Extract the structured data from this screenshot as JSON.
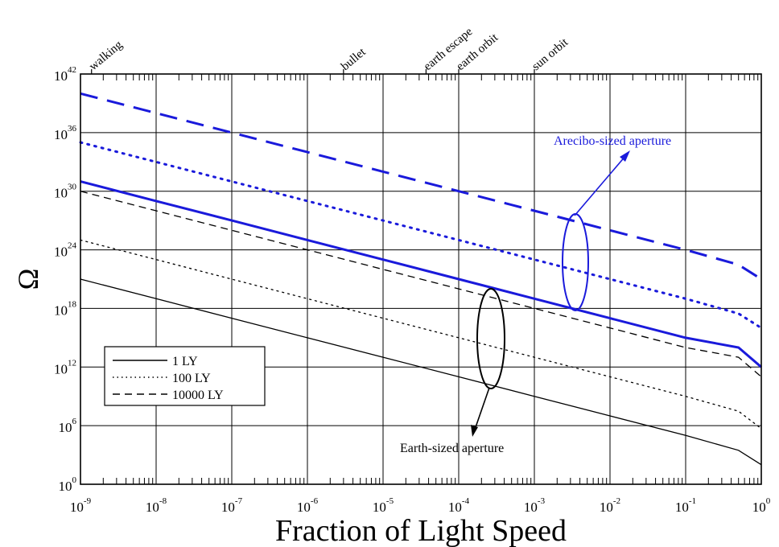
{
  "chart_data": {
    "type": "line",
    "title": "",
    "xlabel": "Fraction of Light Speed",
    "ylabel": "Ω",
    "x_scale": "log",
    "y_scale": "log",
    "xlim": [
      1e-09,
      1
    ],
    "ylim": [
      1,
      1e+42
    ],
    "grid": true,
    "x_ticks": [
      {
        "base": "10",
        "exp": "-9",
        "value": 1e-09
      },
      {
        "base": "10",
        "exp": "-8",
        "value": 1e-08
      },
      {
        "base": "10",
        "exp": "-7",
        "value": 1e-07
      },
      {
        "base": "10",
        "exp": "-6",
        "value": 1e-06
      },
      {
        "base": "10",
        "exp": "-5",
        "value": 1e-05
      },
      {
        "base": "10",
        "exp": "-4",
        "value": 0.0001
      },
      {
        "base": "10",
        "exp": "-3",
        "value": 0.001
      },
      {
        "base": "10",
        "exp": "-2",
        "value": 0.01
      },
      {
        "base": "10",
        "exp": "-1",
        "value": 0.1
      },
      {
        "base": "10",
        "exp": "0",
        "value": 1
      }
    ],
    "y_ticks": [
      {
        "base": "10",
        "exp": "0",
        "value": 1
      },
      {
        "base": "10",
        "exp": "6",
        "value": 1000000.0
      },
      {
        "base": "10",
        "exp": "12",
        "value": 1000000000000.0
      },
      {
        "base": "10",
        "exp": "18",
        "value": 1e+18
      },
      {
        "base": "10",
        "exp": "24",
        "value": 1e+24
      },
      {
        "base": "10",
        "exp": "30",
        "value": 1e+30
      },
      {
        "base": "10",
        "exp": "36",
        "value": 1e+36
      },
      {
        "base": "10",
        "exp": "42",
        "value": 1e+42
      }
    ],
    "top_markers": [
      {
        "label": "walking",
        "x": 1.4e-09
      },
      {
        "label": "bullet",
        "x": 3e-06
      },
      {
        "label": "earth escape",
        "x": 3.7e-05
      },
      {
        "label": "earth orbit",
        "x": 0.0001
      },
      {
        "label": "sun orbit",
        "x": 0.001
      }
    ],
    "legend": {
      "placement": "lower-left",
      "entries": [
        {
          "label": "1 LY",
          "style": "solid"
        },
        {
          "label": "100 LY",
          "style": "dotted"
        },
        {
          "label": "10000 LY",
          "style": "dashed"
        }
      ]
    },
    "series": [
      {
        "group": "Earth-sized aperture",
        "style": "solid",
        "color": "#000000",
        "x": [
          1e-09,
          1e-08,
          1e-07,
          1e-06,
          1e-05,
          0.0001,
          0.001,
          0.01,
          0.1,
          0.5,
          1
        ],
        "y": [
          1e+21,
          1e+19,
          1e+17,
          1000000000000000.0,
          10000000000000.0,
          100000000000.0,
          1000000000.0,
          10000000.0,
          100000.0,
          3000.0,
          100.0
        ]
      },
      {
        "group": "Earth-sized aperture",
        "style": "dotted",
        "color": "#000000",
        "x": [
          1e-09,
          1e-08,
          1e-07,
          1e-06,
          1e-05,
          0.0001,
          0.001,
          0.01,
          0.1,
          0.5,
          1
        ],
        "y": [
          1e+25,
          1e+23,
          1e+21,
          1e+19,
          1e+17,
          1000000000000000.0,
          10000000000000.0,
          100000000000.0,
          1000000000.0,
          30000000.0,
          500000.0
        ]
      },
      {
        "group": "Earth-sized aperture",
        "style": "dashed",
        "color": "#000000",
        "x": [
          1e-09,
          1e-08,
          1e-07,
          1e-06,
          1e-05,
          0.0001,
          0.001,
          0.01,
          0.1,
          0.5,
          1
        ],
        "y": [
          1e+30,
          1e+28,
          1e+26,
          1e+24,
          1e+22,
          1e+20,
          1e+18,
          1e+16,
          100000000000000.0,
          10000000000000.0,
          100000000000.0
        ]
      },
      {
        "group": "Arecibo-sized aperture",
        "style": "solid",
        "color": "#1a1adb",
        "x": [
          1e-09,
          1e-08,
          1e-07,
          1e-06,
          1e-05,
          0.0001,
          0.001,
          0.01,
          0.1,
          0.5,
          1
        ],
        "y": [
          1e+31,
          1e+29,
          1e+27,
          1e+25,
          1e+23,
          1e+21,
          1e+19,
          1e+17,
          1000000000000000.0,
          100000000000000.0,
          1000000000000.0
        ]
      },
      {
        "group": "Arecibo-sized aperture",
        "style": "dotted",
        "color": "#1a1adb",
        "x": [
          1e-09,
          1e-08,
          1e-07,
          1e-06,
          1e-05,
          0.0001,
          0.001,
          0.01,
          0.1,
          0.5,
          1
        ],
        "y": [
          1e+35,
          1e+33,
          1e+31,
          1e+29,
          1e+27,
          1e+25,
          1e+23,
          1e+21,
          1e+19,
          3e+17,
          1e+16
        ]
      },
      {
        "group": "Arecibo-sized aperture",
        "style": "dashed",
        "color": "#1a1adb",
        "x": [
          1e-09,
          1e-08,
          1e-07,
          1e-06,
          1e-05,
          0.0001,
          0.001,
          0.01,
          0.1,
          0.5,
          1
        ],
        "y": [
          1e+40,
          1e+38,
          1e+36,
          1e+34,
          1e+32,
          1e+30,
          1e+28,
          1e+26,
          1e+24,
          3e+22,
          1e+21
        ]
      }
    ],
    "annotations": [
      {
        "text": "Arecibo-sized aperture",
        "color": "#1a1adb"
      },
      {
        "text": "Earth-sized aperture",
        "color": "#000000"
      }
    ]
  }
}
